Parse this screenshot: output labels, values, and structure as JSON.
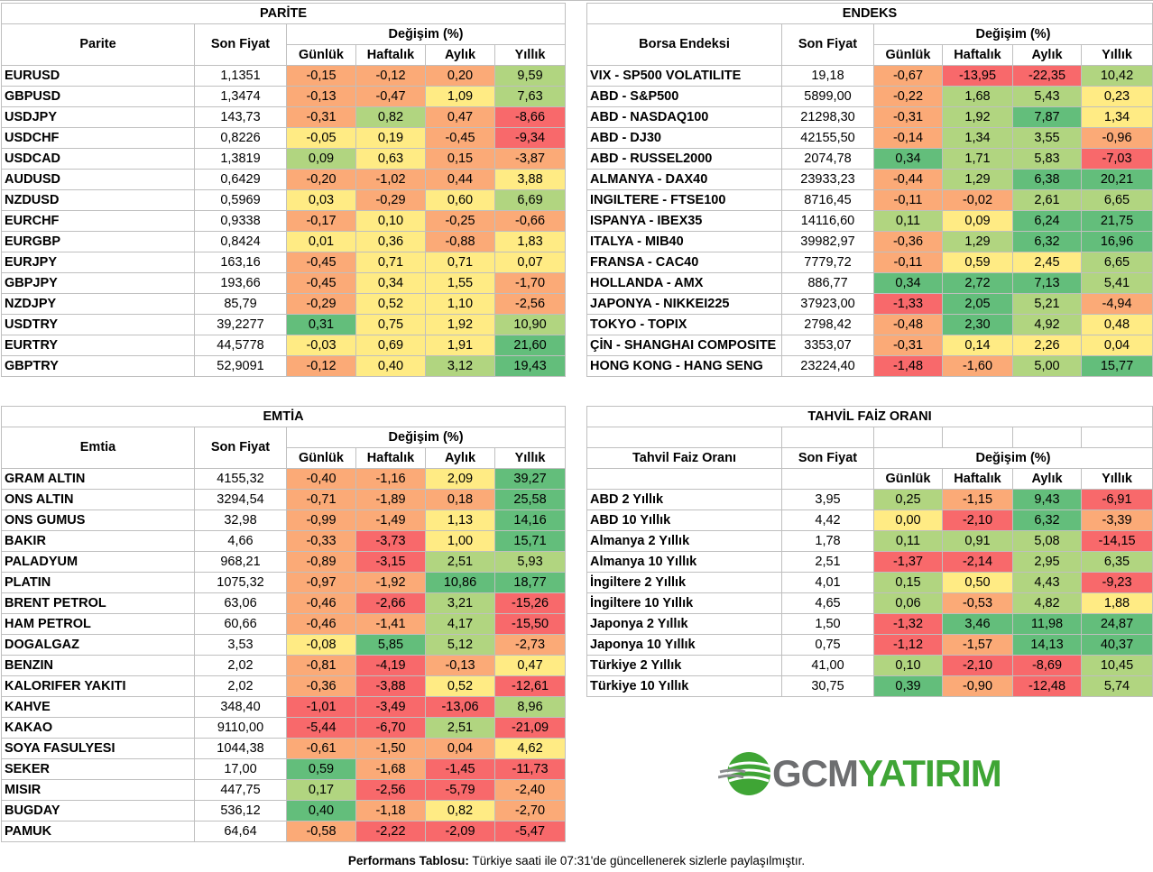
{
  "change_header": "Değişim (%)",
  "period_labels": [
    "Günlük",
    "Haftalık",
    "Aylık",
    "Yıllık"
  ],
  "price_header": "Son Fiyat",
  "parite": {
    "title": "PARİTE",
    "label_header": "Parite",
    "rows": [
      {
        "name": "EURUSD",
        "price": "1,1351",
        "d": "-0,15",
        "w": "-0,12",
        "m": "0,20",
        "y": "9,59"
      },
      {
        "name": "GBPUSD",
        "price": "1,3474",
        "d": "-0,13",
        "w": "-0,47",
        "m": "1,09",
        "y": "7,63"
      },
      {
        "name": "USDJPY",
        "price": "143,73",
        "d": "-0,31",
        "w": "0,82",
        "m": "0,47",
        "y": "-8,66"
      },
      {
        "name": "USDCHF",
        "price": "0,8226",
        "d": "-0,05",
        "w": "0,19",
        "m": "-0,45",
        "y": "-9,34"
      },
      {
        "name": "USDCAD",
        "price": "1,3819",
        "d": "0,09",
        "w": "0,63",
        "m": "0,15",
        "y": "-3,87"
      },
      {
        "name": "AUDUSD",
        "price": "0,6429",
        "d": "-0,20",
        "w": "-1,02",
        "m": "0,44",
        "y": "3,88"
      },
      {
        "name": "NZDUSD",
        "price": "0,5969",
        "d": "0,03",
        "w": "-0,29",
        "m": "0,60",
        "y": "6,69"
      },
      {
        "name": "EURCHF",
        "price": "0,9338",
        "d": "-0,17",
        "w": "0,10",
        "m": "-0,25",
        "y": "-0,66"
      },
      {
        "name": "EURGBP",
        "price": "0,8424",
        "d": "0,01",
        "w": "0,36",
        "m": "-0,88",
        "y": "1,83"
      },
      {
        "name": "EURJPY",
        "price": "163,16",
        "d": "-0,45",
        "w": "0,71",
        "m": "0,71",
        "y": "0,07"
      },
      {
        "name": "GBPJPY",
        "price": "193,66",
        "d": "-0,45",
        "w": "0,34",
        "m": "1,55",
        "y": "-1,70"
      },
      {
        "name": "NZDJPY",
        "price": "85,79",
        "d": "-0,29",
        "w": "0,52",
        "m": "1,10",
        "y": "-2,56"
      },
      {
        "name": "USDTRY",
        "price": "39,2277",
        "d": "0,31",
        "w": "0,75",
        "m": "1,92",
        "y": "10,90"
      },
      {
        "name": "EURTRY",
        "price": "44,5778",
        "d": "-0,03",
        "w": "0,69",
        "m": "1,91",
        "y": "21,60"
      },
      {
        "name": "GBPTRY",
        "price": "52,9091",
        "d": "-0,12",
        "w": "0,40",
        "m": "3,12",
        "y": "19,43"
      }
    ]
  },
  "endeks": {
    "title": "ENDEKS",
    "label_header": "Borsa Endeksi",
    "rows": [
      {
        "name": "VIX  - SP500 VOLATILITE",
        "price": "19,18",
        "d": "-0,67",
        "w": "-13,95",
        "m": "-22,35",
        "y": "10,42"
      },
      {
        "name": "ABD - S&P500",
        "price": "5899,00",
        "d": "-0,22",
        "w": "1,68",
        "m": "5,43",
        "y": "0,23"
      },
      {
        "name": "ABD - NASDAQ100",
        "price": "21298,30",
        "d": "-0,31",
        "w": "1,92",
        "m": "7,87",
        "y": "1,34"
      },
      {
        "name": "ABD - DJ30",
        "price": "42155,50",
        "d": "-0,14",
        "w": "1,34",
        "m": "3,55",
        "y": "-0,96"
      },
      {
        "name": "ABD - RUSSEL2000",
        "price": "2074,78",
        "d": "0,34",
        "w": "1,71",
        "m": "5,83",
        "y": "-7,03"
      },
      {
        "name": "ALMANYA - DAX40",
        "price": "23933,23",
        "d": "-0,44",
        "w": "1,29",
        "m": "6,38",
        "y": "20,21"
      },
      {
        "name": "INGILTERE - FTSE100",
        "price": "8716,45",
        "d": "-0,11",
        "w": "-0,02",
        "m": "2,61",
        "y": "6,65"
      },
      {
        "name": "ISPANYA - IBEX35",
        "price": "14116,60",
        "d": "0,11",
        "w": "0,09",
        "m": "6,24",
        "y": "21,75"
      },
      {
        "name": "ITALYA - MIB40",
        "price": "39982,97",
        "d": "-0,36",
        "w": "1,29",
        "m": "6,32",
        "y": "16,96"
      },
      {
        "name": "FRANSA - CAC40",
        "price": "7779,72",
        "d": "-0,11",
        "w": "0,59",
        "m": "2,45",
        "y": "6,65"
      },
      {
        "name": "HOLLANDA - AMX",
        "price": "886,77",
        "d": "0,34",
        "w": "2,72",
        "m": "7,13",
        "y": "5,41"
      },
      {
        "name": "JAPONYA - NIKKEI225",
        "price": "37923,00",
        "d": "-1,33",
        "w": "2,05",
        "m": "5,21",
        "y": "-4,94"
      },
      {
        "name": "TOKYO - TOPIX",
        "price": "2798,42",
        "d": "-0,48",
        "w": "2,30",
        "m": "4,92",
        "y": "0,48"
      },
      {
        "name": "ÇİN - SHANGHAI COMPOSITE",
        "price": "3353,07",
        "d": "-0,31",
        "w": "0,14",
        "m": "2,26",
        "y": "0,04"
      },
      {
        "name": "HONG KONG - HANG SENG",
        "price": "23224,40",
        "d": "-1,48",
        "w": "-1,60",
        "m": "5,00",
        "y": "15,77"
      }
    ]
  },
  "emtia": {
    "title": "EMTİA",
    "label_header": "Emtia",
    "rows": [
      {
        "name": "GRAM ALTIN",
        "price": "4155,32",
        "d": "-0,40",
        "w": "-1,16",
        "m": "2,09",
        "y": "39,27"
      },
      {
        "name": "ONS ALTIN",
        "price": "3294,54",
        "d": "-0,71",
        "w": "-1,89",
        "m": "0,18",
        "y": "25,58"
      },
      {
        "name": "ONS GUMUS",
        "price": "32,98",
        "d": "-0,99",
        "w": "-1,49",
        "m": "1,13",
        "y": "14,16"
      },
      {
        "name": "BAKIR",
        "price": "4,66",
        "d": "-0,33",
        "w": "-3,73",
        "m": "1,00",
        "y": "15,71"
      },
      {
        "name": "PALADYUM",
        "price": "968,21",
        "d": "-0,89",
        "w": "-3,15",
        "m": "2,51",
        "y": "5,93"
      },
      {
        "name": "PLATIN",
        "price": "1075,32",
        "d": "-0,97",
        "w": "-1,92",
        "m": "10,86",
        "y": "18,77"
      },
      {
        "name": "BRENT PETROL",
        "price": "63,06",
        "d": "-0,46",
        "w": "-2,66",
        "m": "3,21",
        "y": "-15,26"
      },
      {
        "name": "HAM PETROL",
        "price": "60,66",
        "d": "-0,46",
        "w": "-1,41",
        "m": "4,17",
        "y": "-15,50"
      },
      {
        "name": "DOGALGAZ",
        "price": "3,53",
        "d": "-0,08",
        "w": "5,85",
        "m": "5,12",
        "y": "-2,73"
      },
      {
        "name": "BENZIN",
        "price": "2,02",
        "d": "-0,81",
        "w": "-4,19",
        "m": "-0,13",
        "y": "0,47"
      },
      {
        "name": "KALORIFER YAKITI",
        "price": "2,02",
        "d": "-0,36",
        "w": "-3,88",
        "m": "0,52",
        "y": "-12,61"
      },
      {
        "name": "KAHVE",
        "price": "348,40",
        "d": "-1,01",
        "w": "-3,49",
        "m": "-13,06",
        "y": "8,96"
      },
      {
        "name": "KAKAO",
        "price": "9110,00",
        "d": "-5,44",
        "w": "-6,70",
        "m": "2,51",
        "y": "-21,09"
      },
      {
        "name": "SOYA FASULYESI",
        "price": "1044,38",
        "d": "-0,61",
        "w": "-1,50",
        "m": "0,04",
        "y": "4,62"
      },
      {
        "name": "SEKER",
        "price": "17,00",
        "d": "0,59",
        "w": "-1,68",
        "m": "-1,45",
        "y": "-11,73"
      },
      {
        "name": "MISIR",
        "price": "447,75",
        "d": "0,17",
        "w": "-2,56",
        "m": "-5,79",
        "y": "-2,40"
      },
      {
        "name": "BUGDAY",
        "price": "536,12",
        "d": "0,40",
        "w": "-1,18",
        "m": "0,82",
        "y": "-2,70"
      },
      {
        "name": "PAMUK",
        "price": "64,64",
        "d": "-0,58",
        "w": "-2,22",
        "m": "-2,09",
        "y": "-5,47"
      }
    ]
  },
  "tahvil": {
    "title": "TAHVİL FAİZ ORANI",
    "label_header": "Tahvil Faiz Oranı",
    "rows": [
      {
        "name": "ABD 2 Yıllık",
        "price": "3,95",
        "d": "0,25",
        "w": "-1,15",
        "m": "9,43",
        "y": "-6,91"
      },
      {
        "name": "ABD 10 Yıllık",
        "price": "4,42",
        "d": "0,00",
        "w": "-2,10",
        "m": "6,32",
        "y": "-3,39"
      },
      {
        "name": "Almanya 2 Yıllık",
        "price": "1,78",
        "d": "0,11",
        "w": "0,91",
        "m": "5,08",
        "y": "-14,15"
      },
      {
        "name": "Almanya 10 Yıllık",
        "price": "2,51",
        "d": "-1,37",
        "w": "-2,14",
        "m": "2,95",
        "y": "6,35"
      },
      {
        "name": "İngiltere 2 Yıllık",
        "price": "4,01",
        "d": "0,15",
        "w": "0,50",
        "m": "4,43",
        "y": "-9,23"
      },
      {
        "name": "İngiltere 10 Yıllık",
        "price": "4,65",
        "d": "0,06",
        "w": "-0,53",
        "m": "4,82",
        "y": "1,88"
      },
      {
        "name": "Japonya 2 Yıllık",
        "price": "1,50",
        "d": "-1,32",
        "w": "3,46",
        "m": "11,98",
        "y": "24,87"
      },
      {
        "name": "Japonya 10 Yıllık",
        "price": "0,75",
        "d": "-1,12",
        "w": "-1,57",
        "m": "14,13",
        "y": "40,37"
      },
      {
        "name": "Türkiye 2 Yıllık",
        "price": "41,00",
        "d": "0,10",
        "w": "-2,10",
        "m": "-8,69",
        "y": "10,45"
      },
      {
        "name": "Türkiye 10 Yıllık",
        "price": "30,75",
        "d": "0,39",
        "w": "-0,90",
        "m": "-12,48",
        "y": "5,74"
      }
    ]
  },
  "logo": {
    "part1": "GCM",
    "part2": "YATIRIM"
  },
  "footer": {
    "bold": "Performans Tablosu:",
    "text": " Türkiye saati ile 07:31'de güncellenerek sizlerle paylaşılmıştır."
  },
  "colors": {
    "red": "#f8696b",
    "orange": "#fbaa77",
    "yellow": "#ffeb84",
    "lightgreen": "#b1d580",
    "green": "#63be7b"
  }
}
